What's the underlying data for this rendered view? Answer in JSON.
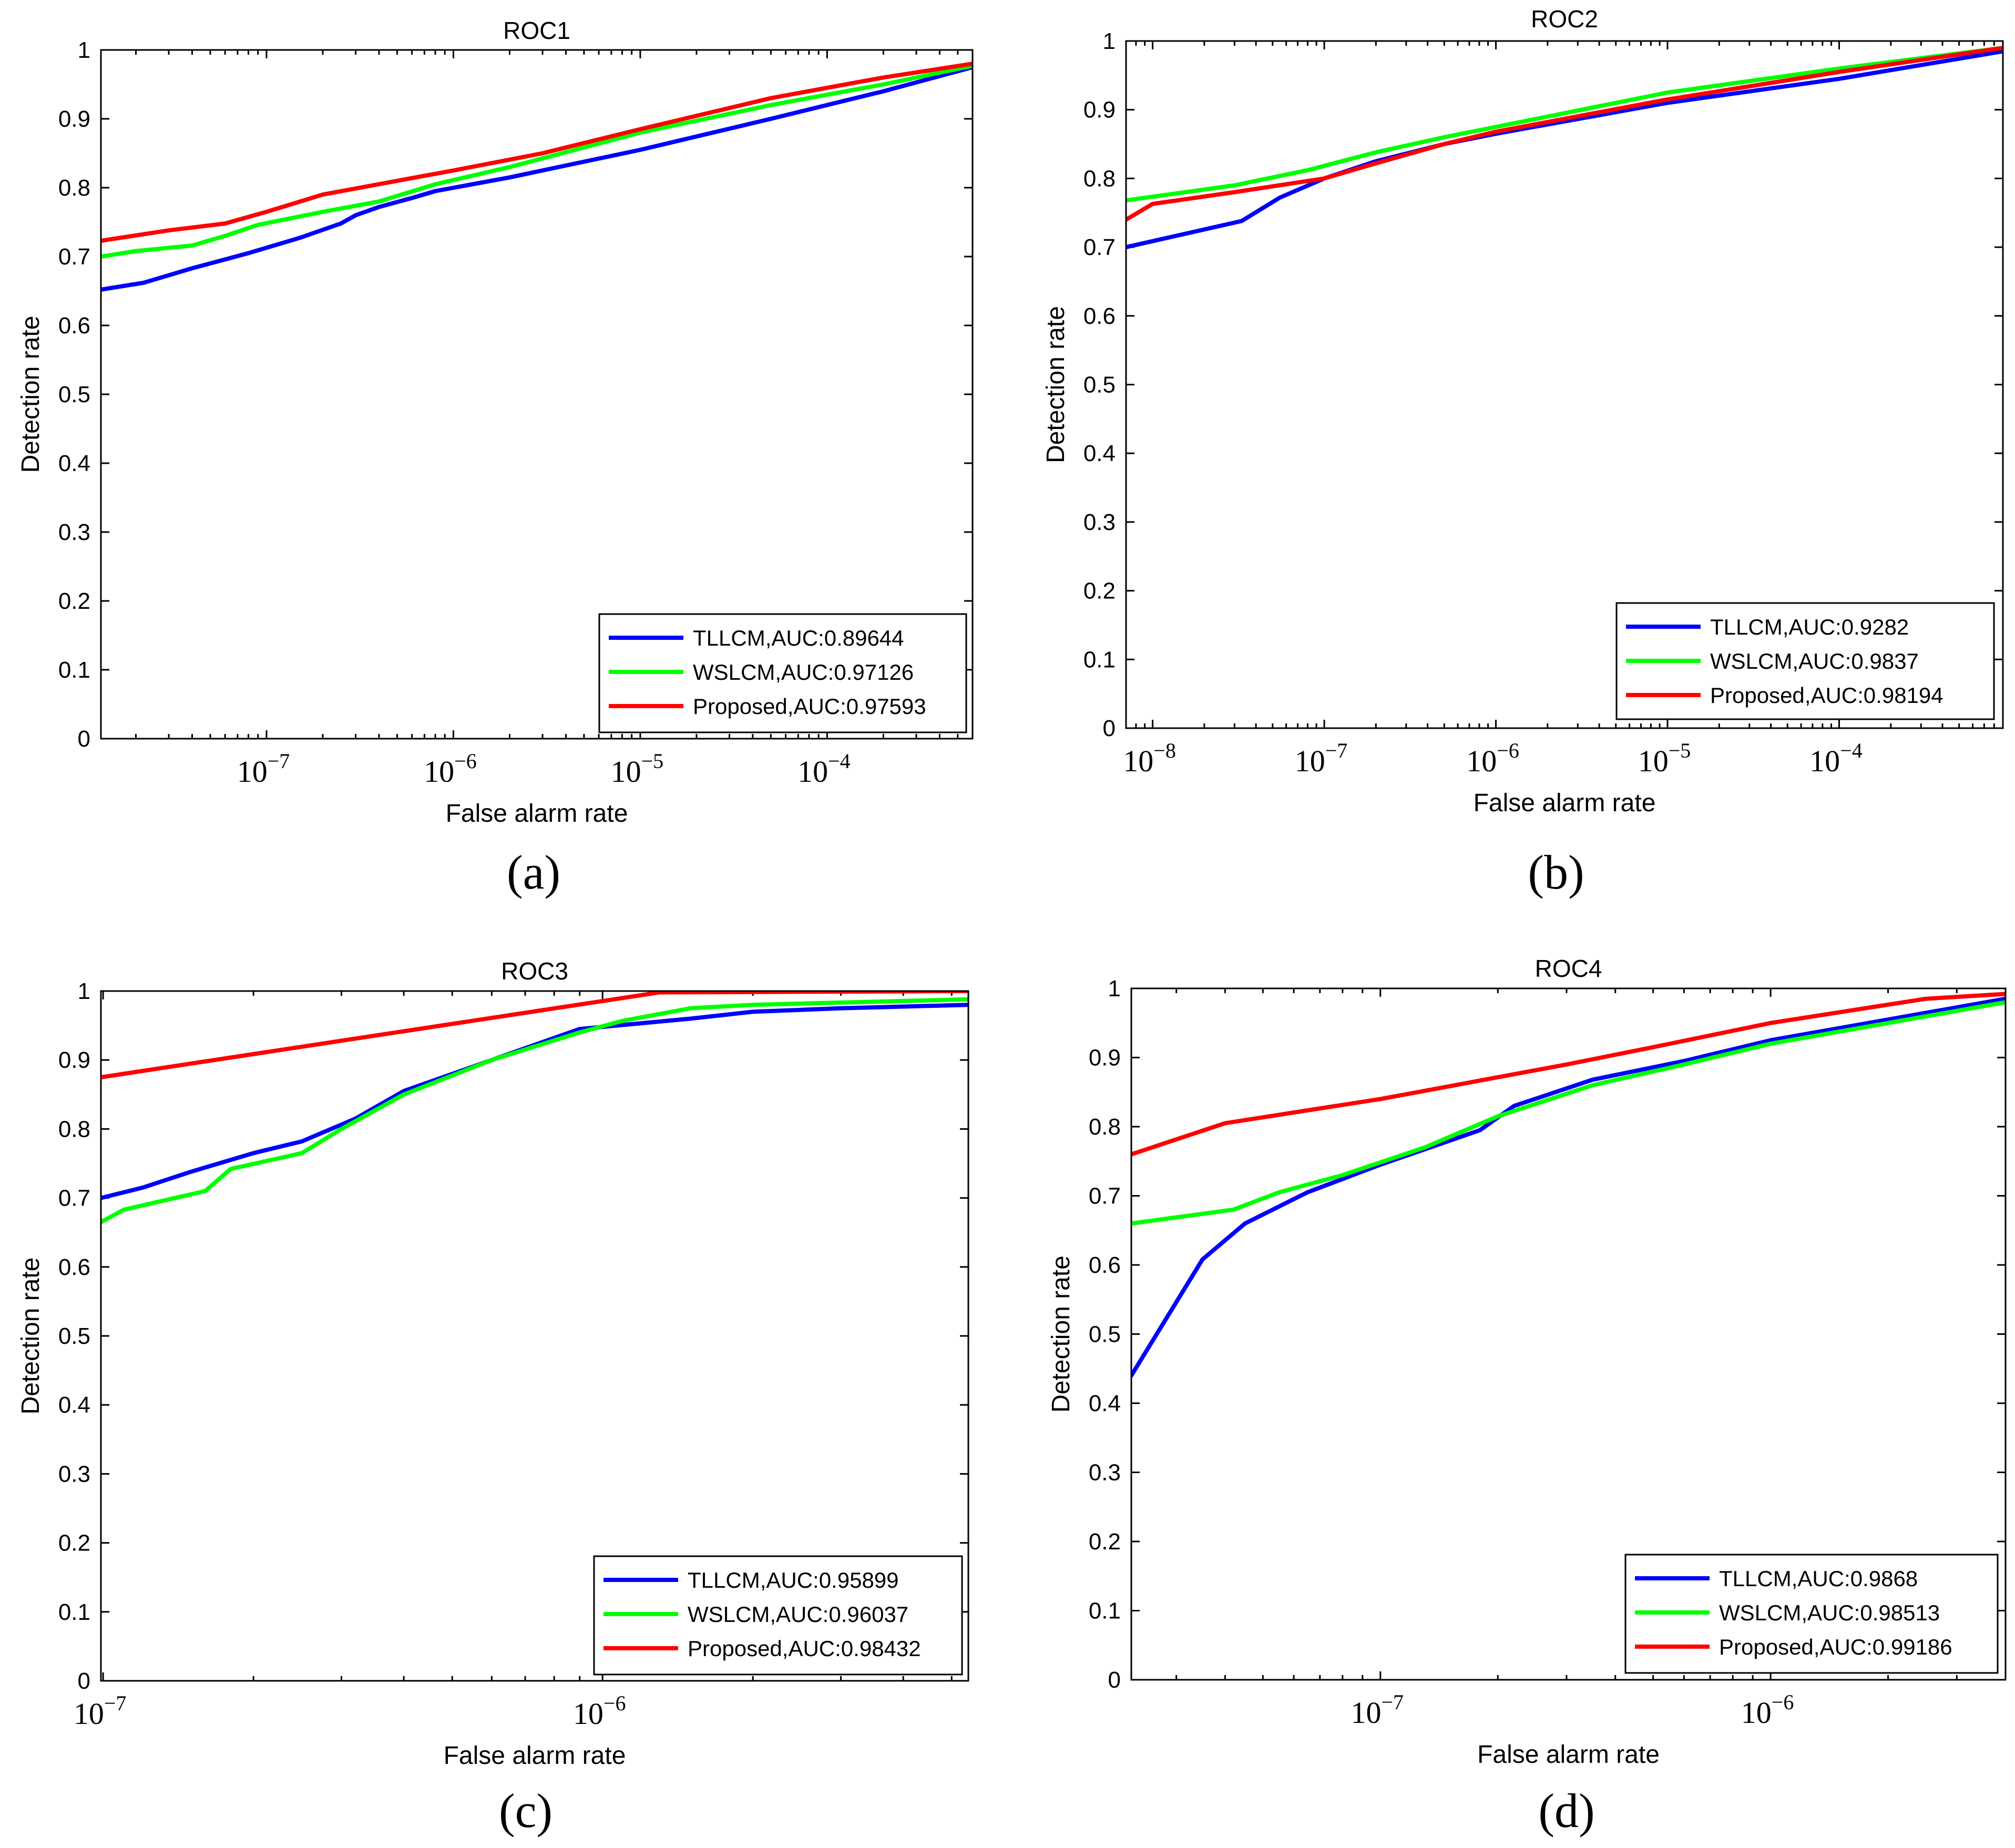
{
  "chart_data": [
    {
      "type": "line",
      "panel_label": "(a)",
      "title": "ROC1",
      "xlabel": "False alarm rate",
      "ylabel": "Detection rate",
      "xscale": "log",
      "xlim": [
        1.3e-08,
        0.0006
      ],
      "ylim": [
        0,
        1
      ],
      "yticks": [
        0,
        0.1,
        0.2,
        0.3,
        0.4,
        0.5,
        0.6,
        0.7,
        0.8,
        0.9,
        1
      ],
      "ytick_labels": [
        "0",
        "0.1",
        "0.2",
        "0.3",
        "0.4",
        "0.5",
        "0.6",
        "0.7",
        "0.8",
        "0.9",
        "1"
      ],
      "xticks": [
        {
          "value": 1e-07,
          "base": "10",
          "exp": "−7"
        },
        {
          "value": 1e-06,
          "base": "10",
          "exp": "−6"
        },
        {
          "value": 1e-05,
          "base": "10",
          "exp": "−5"
        },
        {
          "value": 0.0001,
          "base": "10",
          "exp": "−4"
        }
      ],
      "legend_position": "bottom-right",
      "series": [
        {
          "name": "TLLCM,AUC:0.89644",
          "color": "#0000ff",
          "x": [
            1.3e-08,
            2.2e-08,
            4e-08,
            8e-08,
            1.5e-07,
            2.5e-07,
            3e-07,
            4e-07,
            6e-07,
            8e-07,
            2e-06,
            1e-05,
            5e-05,
            0.0002,
            0.0006
          ],
          "y": [
            0.652,
            0.662,
            0.683,
            0.705,
            0.727,
            0.748,
            0.76,
            0.772,
            0.785,
            0.795,
            0.815,
            0.855,
            0.9,
            0.94,
            0.975
          ]
        },
        {
          "name": "WSLCM,AUC:0.97126",
          "color": "#00ff00",
          "x": [
            1.3e-08,
            2e-08,
            4e-08,
            6e-08,
            9e-08,
            2e-07,
            4e-07,
            8e-07,
            2e-06,
            1e-05,
            5e-05,
            0.0002,
            0.0006
          ],
          "y": [
            0.7,
            0.708,
            0.716,
            0.73,
            0.746,
            0.765,
            0.78,
            0.805,
            0.83,
            0.88,
            0.92,
            0.95,
            0.977
          ]
        },
        {
          "name": "Proposed,AUC:0.97593",
          "color": "#ff0000",
          "x": [
            1.3e-08,
            3e-08,
            6e-08,
            1e-07,
            2e-07,
            5e-07,
            1e-06,
            3e-06,
            1e-05,
            5e-05,
            0.0002,
            0.0006
          ],
          "y": [
            0.723,
            0.738,
            0.748,
            0.765,
            0.79,
            0.81,
            0.825,
            0.85,
            0.885,
            0.93,
            0.96,
            0.98
          ]
        }
      ]
    },
    {
      "type": "line",
      "panel_label": "(b)",
      "title": "ROC2",
      "xlabel": "False alarm rate",
      "ylabel": "Detection rate",
      "xscale": "log",
      "xlim": [
        7e-09,
        0.0009
      ],
      "ylim": [
        0,
        1
      ],
      "yticks": [
        0,
        0.1,
        0.2,
        0.3,
        0.4,
        0.5,
        0.6,
        0.7,
        0.8,
        0.9,
        1
      ],
      "ytick_labels": [
        "0",
        "0.1",
        "0.2",
        "0.3",
        "0.4",
        "0.5",
        "0.6",
        "0.7",
        "0.8",
        "0.9",
        "1"
      ],
      "xticks": [
        {
          "value": 1e-08,
          "base": "10",
          "exp": "−8"
        },
        {
          "value": 1e-07,
          "base": "10",
          "exp": "−7"
        },
        {
          "value": 1e-06,
          "base": "10",
          "exp": "−6"
        },
        {
          "value": 1e-05,
          "base": "10",
          "exp": "−5"
        },
        {
          "value": 0.0001,
          "base": "10",
          "exp": "−4"
        }
      ],
      "legend_position": "bottom-right",
      "series": [
        {
          "name": "TLLCM,AUC:0.9282",
          "color": "#0000ff",
          "x": [
            7e-09,
            3.3e-08,
            5.5e-08,
            1e-07,
            2e-07,
            5e-07,
            1e-06,
            1e-05,
            0.0001,
            0.0009
          ],
          "y": [
            0.7,
            0.738,
            0.772,
            0.8,
            0.825,
            0.85,
            0.865,
            0.91,
            0.945,
            0.985
          ]
        },
        {
          "name": "WSLCM,AUC:0.9837",
          "color": "#00ff00",
          "x": [
            7e-09,
            3e-08,
            8e-08,
            2e-07,
            5e-07,
            1e-06,
            1e-05,
            0.0001,
            0.0009
          ],
          "y": [
            0.768,
            0.79,
            0.812,
            0.838,
            0.86,
            0.875,
            0.925,
            0.96,
            0.99
          ]
        },
        {
          "name": "Proposed,AUC:0.98194",
          "color": "#ff0000",
          "x": [
            7e-09,
            1e-08,
            3e-08,
            1e-07,
            2e-07,
            5e-07,
            1e-06,
            1e-05,
            0.0001,
            0.0009
          ],
          "y": [
            0.74,
            0.763,
            0.78,
            0.8,
            0.822,
            0.85,
            0.868,
            0.915,
            0.955,
            0.99
          ]
        }
      ]
    },
    {
      "type": "line",
      "panel_label": "(c)",
      "title": "ROC3",
      "xlabel": "False alarm rate",
      "ylabel": "Detection rate",
      "xscale": "log",
      "xlim": [
        9.9e-08,
        5.4e-06
      ],
      "ylim": [
        0,
        1
      ],
      "yticks": [
        0,
        0.1,
        0.2,
        0.3,
        0.4,
        0.5,
        0.6,
        0.7,
        0.8,
        0.9,
        1
      ],
      "ytick_labels": [
        "0",
        "0.1",
        "0.2",
        "0.3",
        "0.4",
        "0.5",
        "0.6",
        "0.7",
        "0.8",
        "0.9",
        "1"
      ],
      "xticks": [
        {
          "value": 1e-07,
          "base": "10",
          "exp": "−7"
        },
        {
          "value": 1e-06,
          "base": "10",
          "exp": "−6"
        }
      ],
      "legend_position": "bottom-right",
      "series": [
        {
          "name": "TLLCM,AUC:0.95899",
          "color": "#0000ff",
          "x": [
            9.9e-08,
            1.2e-07,
            1.5e-07,
            2e-07,
            2.5e-07,
            3.2e-07,
            4e-07,
            6e-07,
            9e-07,
            1.5e-06,
            2e-06,
            3e-06,
            5.4e-06
          ],
          "y": [
            0.7,
            0.715,
            0.738,
            0.765,
            0.782,
            0.815,
            0.855,
            0.9,
            0.945,
            0.96,
            0.97,
            0.975,
            0.98
          ]
        },
        {
          "name": "WSLCM,AUC:0.96037",
          "color": "#00ff00",
          "x": [
            9.9e-08,
            1.1e-07,
            1.6e-07,
            1.8e-07,
            2.5e-07,
            3e-07,
            4e-07,
            6e-07,
            9e-07,
            1.1e-06,
            1.5e-06,
            2e-06,
            5.4e-06
          ],
          "y": [
            0.665,
            0.683,
            0.71,
            0.742,
            0.765,
            0.8,
            0.85,
            0.9,
            0.94,
            0.957,
            0.975,
            0.98,
            0.988
          ]
        },
        {
          "name": "Proposed,AUC:0.98432",
          "color": "#ff0000",
          "x": [
            9.9e-08,
            1.3e-06,
            5.4e-06
          ],
          "y": [
            0.875,
            0.998,
            1.0
          ]
        }
      ]
    },
    {
      "type": "line",
      "panel_label": "(d)",
      "title": "ROC4",
      "xlabel": "False alarm rate",
      "ylabel": "Detection rate",
      "xscale": "log",
      "xlim": [
        2.3e-08,
        4e-06
      ],
      "ylim": [
        0,
        1
      ],
      "yticks": [
        0,
        0.1,
        0.2,
        0.3,
        0.4,
        0.5,
        0.6,
        0.7,
        0.8,
        0.9,
        1
      ],
      "ytick_labels": [
        "0",
        "0.1",
        "0.2",
        "0.3",
        "0.4",
        "0.5",
        "0.6",
        "0.7",
        "0.8",
        "0.9",
        "1"
      ],
      "xticks": [
        {
          "value": 1e-07,
          "base": "10",
          "exp": "−7"
        },
        {
          "value": 1e-06,
          "base": "10",
          "exp": "−6"
        }
      ],
      "legend_position": "bottom-right",
      "series": [
        {
          "name": "TLLCM,AUC:0.9868",
          "color": "#0000ff",
          "x": [
            2.3e-08,
            3.5e-08,
            4.5e-08,
            6.5e-08,
            1e-07,
            1.8e-07,
            2.2e-07,
            3.5e-07,
            6e-07,
            1e-06,
            2e-06,
            4e-06
          ],
          "y": [
            0.44,
            0.608,
            0.66,
            0.705,
            0.745,
            0.795,
            0.83,
            0.868,
            0.895,
            0.925,
            0.955,
            0.985
          ]
        },
        {
          "name": "WSLCM,AUC:0.98513",
          "color": "#00ff00",
          "x": [
            2.3e-08,
            4.2e-08,
            5.5e-08,
            8e-08,
            1.3e-07,
            2e-07,
            3.5e-07,
            6e-07,
            1e-06,
            2e-06,
            4e-06
          ],
          "y": [
            0.66,
            0.68,
            0.705,
            0.73,
            0.77,
            0.815,
            0.86,
            0.89,
            0.92,
            0.95,
            0.98
          ]
        },
        {
          "name": "Proposed,AUC:0.99186",
          "color": "#ff0000",
          "x": [
            2.3e-08,
            4e-08,
            1e-07,
            3e-07,
            5e-07,
            1e-06,
            2.5e-06,
            4e-06
          ],
          "y": [
            0.76,
            0.805,
            0.84,
            0.89,
            0.915,
            0.95,
            0.985,
            0.992
          ]
        }
      ]
    }
  ]
}
